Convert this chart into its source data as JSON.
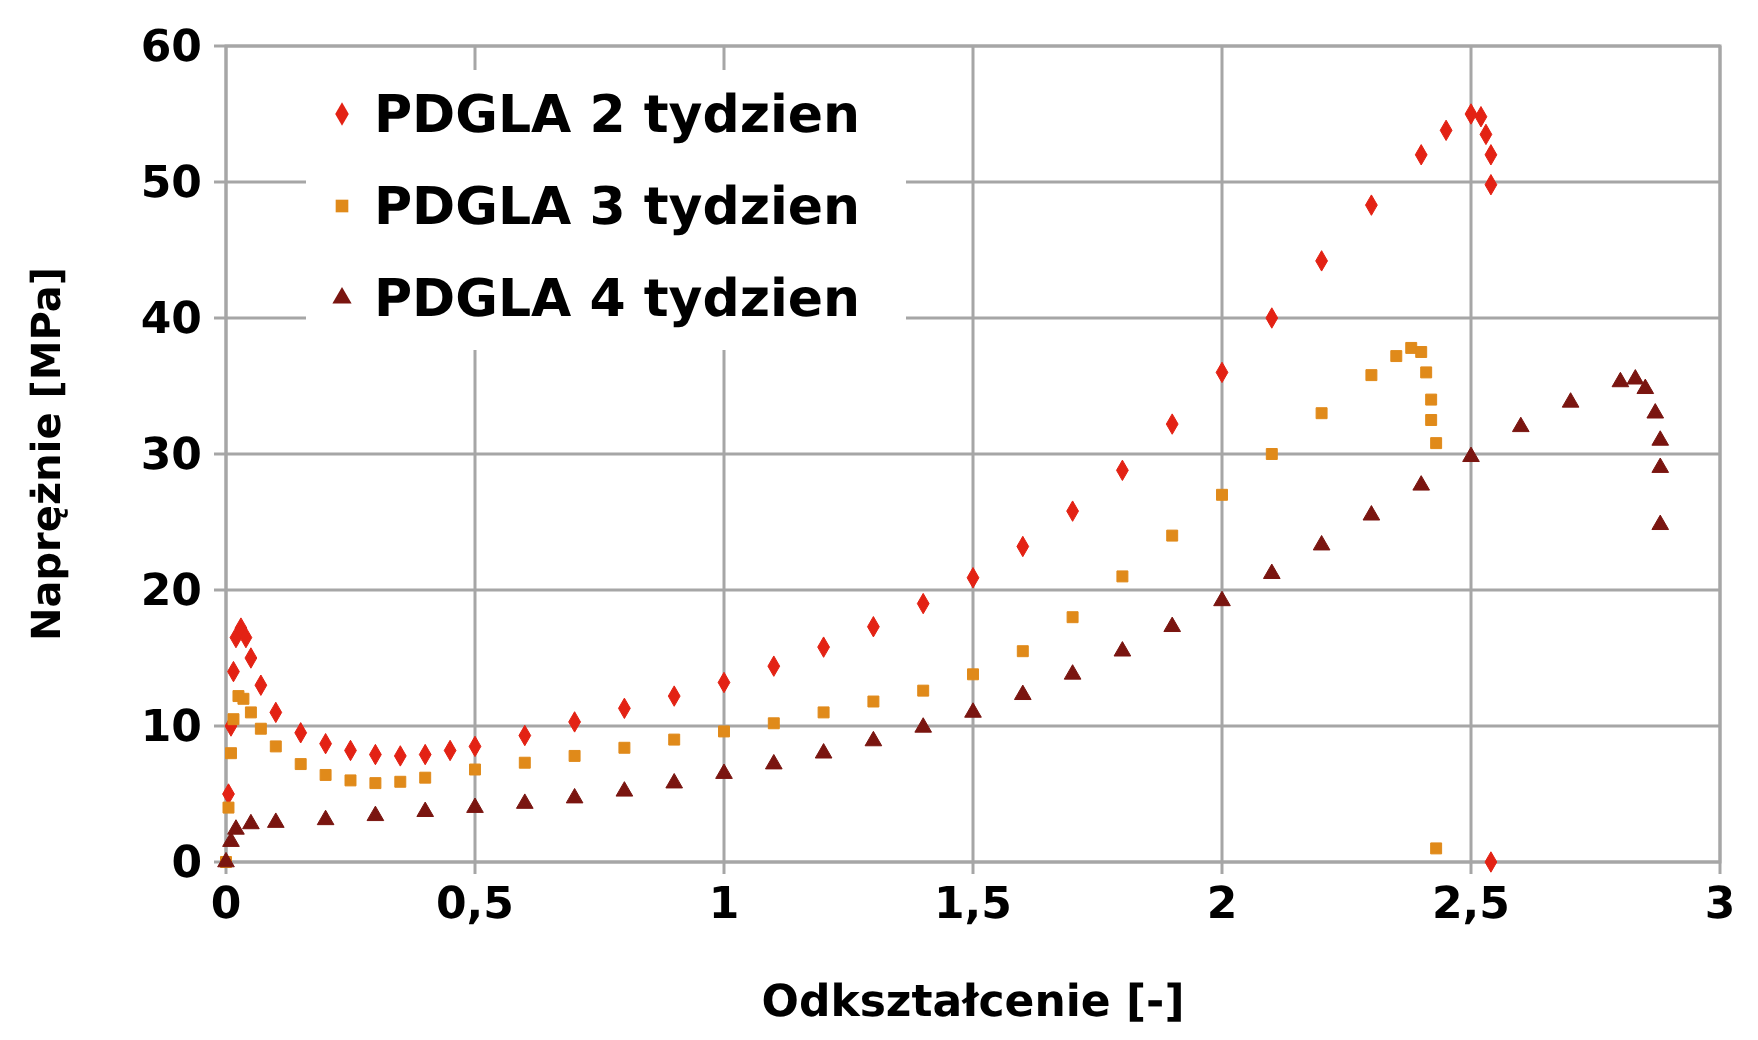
{
  "chart_data": {
    "type": "scatter",
    "xlabel": "Odkształcenie [-]",
    "ylabel": "Naprężnie [MPa]",
    "xlim": [
      0,
      3
    ],
    "ylim": [
      0,
      60
    ],
    "xticks": [
      0,
      {
        "value": 0.5,
        "label": "0,5"
      },
      1,
      {
        "value": 1.5,
        "label": "1,5"
      },
      2,
      {
        "value": 2.5,
        "label": "2,5"
      },
      3
    ],
    "yticks": [
      0,
      10,
      20,
      30,
      40,
      50,
      60
    ],
    "grid": true,
    "legend": "top left",
    "series": [
      {
        "name": "PDGLA 2 tydzien",
        "color": "#e32214",
        "marker": "diamond",
        "x": [
          0.005,
          0.01,
          0.015,
          0.02,
          0.03,
          0.04,
          0.05,
          0.07,
          0.1,
          0.15,
          0.2,
          0.25,
          0.3,
          0.35,
          0.4,
          0.45,
          0.5,
          0.6,
          0.7,
          0.8,
          0.9,
          1.0,
          1.1,
          1.2,
          1.3,
          1.4,
          1.5,
          1.6,
          1.7,
          1.8,
          1.9,
          2.0,
          2.1,
          2.2,
          2.3,
          2.4,
          2.45,
          2.5,
          2.52,
          2.53,
          2.54,
          2.54,
          2.54
        ],
        "values": [
          5,
          10,
          14,
          16.5,
          17.2,
          16.5,
          15,
          13,
          11,
          9.5,
          8.7,
          8.2,
          7.9,
          7.8,
          7.9,
          8.2,
          8.5,
          9.3,
          10.3,
          11.3,
          12.2,
          13.2,
          14.4,
          15.8,
          17.3,
          19,
          20.9,
          23.2,
          25.8,
          28.8,
          32.2,
          36,
          40,
          44.2,
          48.3,
          52,
          53.8,
          55,
          54.8,
          53.5,
          52,
          49.8,
          0
        ]
      },
      {
        "name": "PDGLA 3 tydzien",
        "color": "#e08a1a",
        "marker": "square",
        "x": [
          0,
          0.005,
          0.01,
          0.015,
          0.025,
          0.035,
          0.05,
          0.07,
          0.1,
          0.15,
          0.2,
          0.25,
          0.3,
          0.35,
          0.4,
          0.5,
          0.6,
          0.7,
          0.8,
          0.9,
          1.0,
          1.1,
          1.2,
          1.3,
          1.4,
          1.5,
          1.6,
          1.7,
          1.8,
          1.9,
          2.0,
          2.1,
          2.2,
          2.3,
          2.35,
          2.38,
          2.4,
          2.41,
          2.42,
          2.42,
          2.43,
          2.43
        ],
        "values": [
          0,
          4,
          8,
          10.5,
          12.2,
          12,
          11,
          9.8,
          8.5,
          7.2,
          6.4,
          6,
          5.8,
          5.9,
          6.2,
          6.8,
          7.3,
          7.8,
          8.4,
          9,
          9.6,
          10.2,
          11,
          11.8,
          12.6,
          13.8,
          15.5,
          18,
          21,
          24,
          27,
          30,
          33,
          35.8,
          37.2,
          37.8,
          37.5,
          36,
          34,
          32.5,
          30.8,
          1
        ]
      },
      {
        "name": "PDGLA 4 tydzien",
        "color": "#7a1510",
        "marker": "triangle",
        "x": [
          0,
          0.01,
          0.02,
          0.05,
          0.1,
          0.2,
          0.3,
          0.4,
          0.5,
          0.6,
          0.7,
          0.8,
          0.9,
          1.0,
          1.1,
          1.2,
          1.3,
          1.4,
          1.5,
          1.6,
          1.7,
          1.8,
          1.9,
          2.0,
          2.1,
          2.2,
          2.3,
          2.4,
          2.5,
          2.6,
          2.7,
          2.8,
          2.83,
          2.85,
          2.87,
          2.88,
          2.88,
          2.88
        ],
        "values": [
          0,
          1.5,
          2.4,
          2.8,
          2.9,
          3.1,
          3.4,
          3.7,
          4,
          4.3,
          4.7,
          5.2,
          5.8,
          6.5,
          7.2,
          8,
          8.9,
          9.9,
          11,
          12.3,
          13.8,
          15.5,
          17.3,
          19.2,
          21.2,
          23.3,
          25.5,
          27.7,
          29.8,
          32,
          33.8,
          35.3,
          35.5,
          34.8,
          33,
          31,
          29,
          24.8
        ]
      }
    ]
  }
}
